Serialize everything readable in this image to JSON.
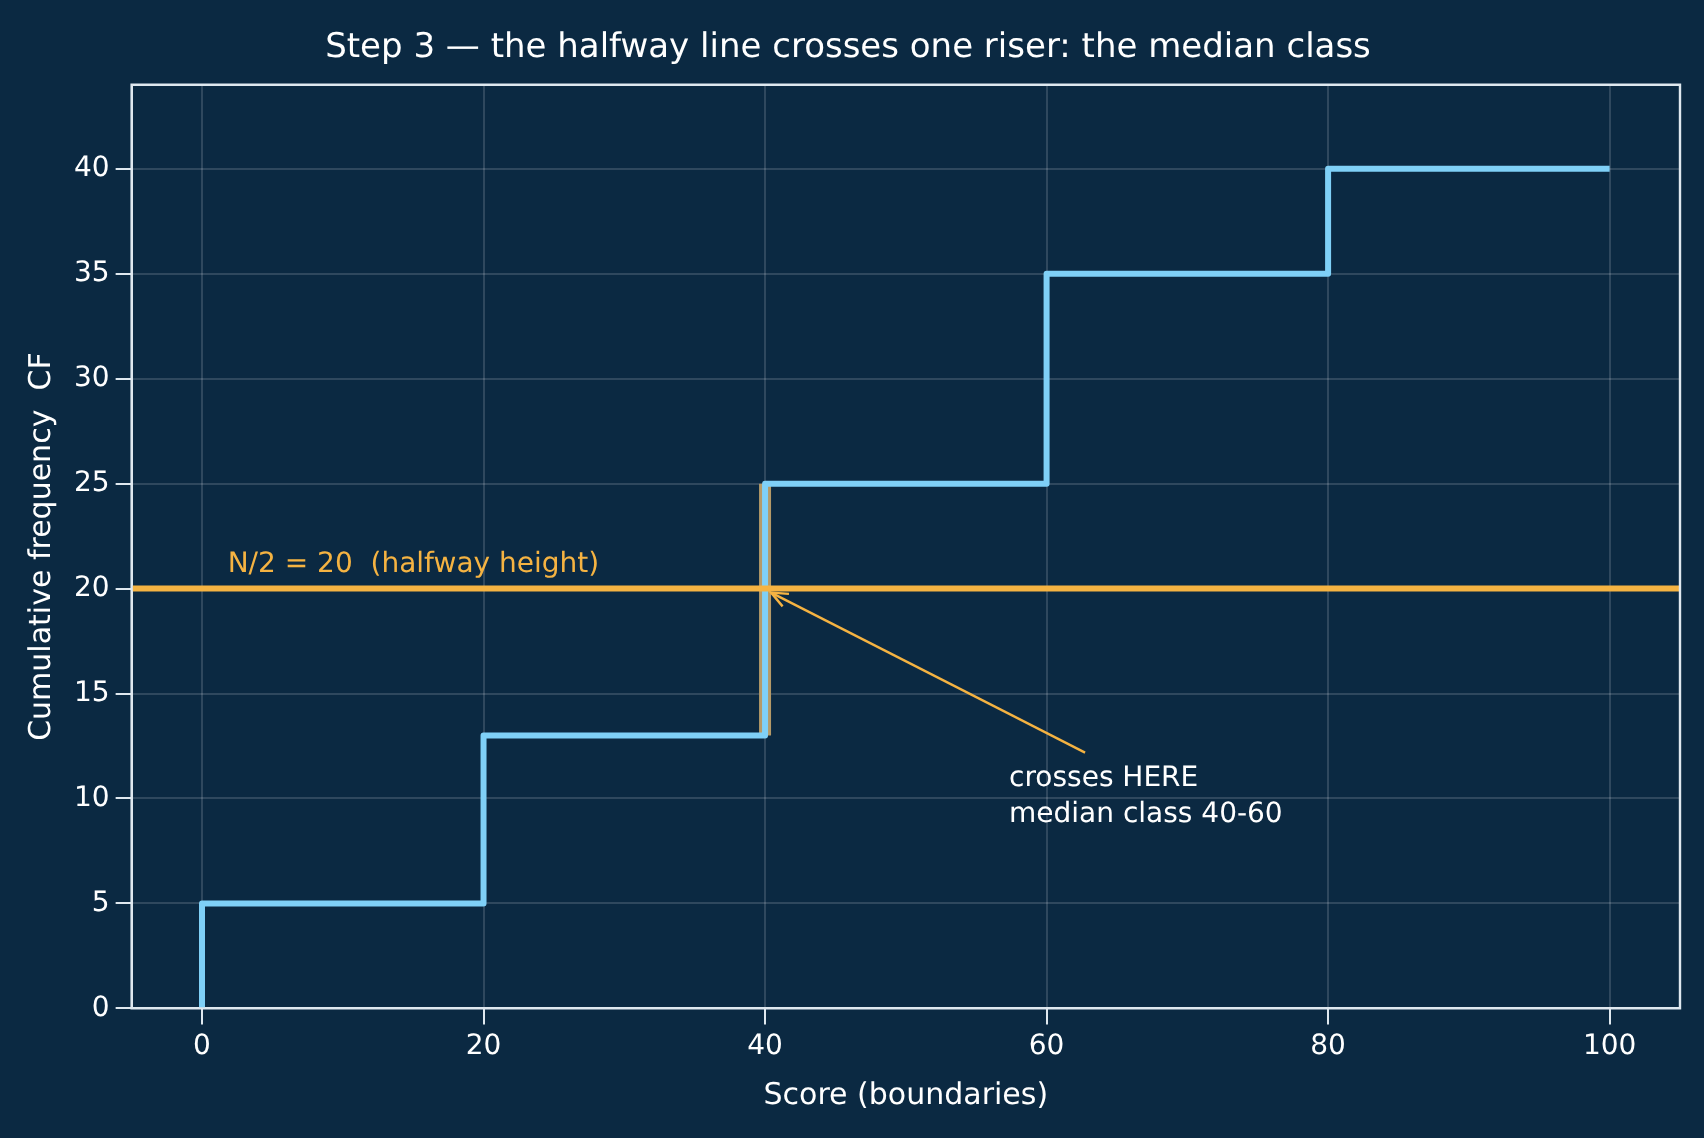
{
  "chart_data": {
    "type": "step",
    "title": "Step 3 — the halfway line crosses one riser: the median class",
    "xlabel": "Score (boundaries)",
    "ylabel": "Cumulative frequency  CF",
    "x": [
      0,
      20,
      40,
      60,
      80,
      100
    ],
    "series": [
      {
        "color": "#7fd0f7",
        "values": [
          0,
          5,
          13,
          25,
          35,
          40
        ]
      },
      {
        "type": "line",
        "color": "#b59a68",
        "x": [
          40,
          40
        ],
        "values": [
          13,
          25
        ]
      }
    ],
    "xlim": [
      -5,
      105
    ],
    "xticks": [
      0,
      20,
      40,
      60,
      80,
      100
    ],
    "ylim": [
      0,
      44
    ],
    "yticks": [
      0,
      5,
      10,
      15,
      20,
      25,
      30,
      35,
      40
    ],
    "ref_lines": [
      {
        "axis": "y",
        "value": 20,
        "label": "N/2 = 20  (halfway height)",
        "color": "#f5b342"
      }
    ],
    "annotations": [
      {
        "text": "crosses HERE\nmedian class 40-60",
        "x": 40,
        "y": 20
      }
    ],
    "grid": true,
    "legend": false
  }
}
